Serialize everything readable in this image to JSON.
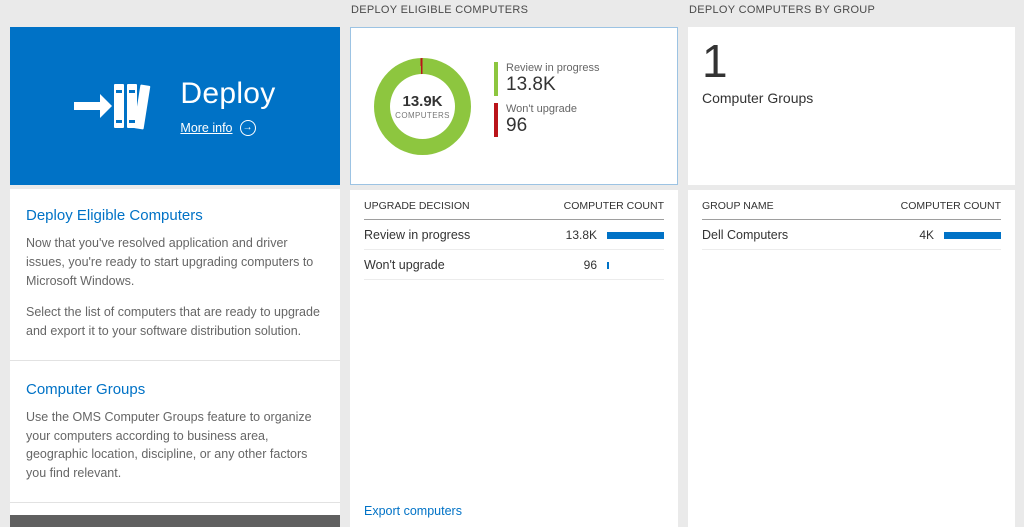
{
  "left": {
    "tile": {
      "title": "Deploy",
      "more_info": "More info"
    },
    "section_deploy": {
      "heading": "Deploy Eligible Computers",
      "p1": "Now that you've resolved application and driver issues, you're ready to start upgrading computers to Microsoft Windows.",
      "p2": "Select the list of computers that are ready to upgrade and export it to your software distribution solution."
    },
    "section_groups": {
      "heading": "Computer Groups",
      "p1": "Use the OMS Computer Groups feature to organize your computers according to business area, geographic location, discipline, or any other factors you find relevant."
    }
  },
  "middle": {
    "header": "DEPLOY ELIGIBLE COMPUTERS",
    "donut_center_value": "13.9K",
    "donut_center_label": "COMPUTERS",
    "legend": [
      {
        "label": "Review in progress",
        "value": "13.8K"
      },
      {
        "label": "Won't upgrade",
        "value": "96"
      }
    ],
    "table": {
      "col1": "UPGRADE DECISION",
      "col2": "COMPUTER COUNT",
      "rows": [
        {
          "label": "Review in progress",
          "value": "13.8K",
          "bar_pct": 100
        },
        {
          "label": "Won't upgrade",
          "value": "96",
          "bar_pct": 3
        }
      ]
    },
    "export_link": "Export computers"
  },
  "right": {
    "header": "DEPLOY COMPUTERS BY GROUP",
    "count": "1",
    "count_label": "Computer Groups",
    "table": {
      "col1": "GROUP NAME",
      "col2": "COMPUTER COUNT",
      "rows": [
        {
          "label": "Dell Computers",
          "value": "4K",
          "bar_pct": 100
        }
      ]
    }
  },
  "colors": {
    "accent_blue": "#0072c6",
    "donut_green": "#8dc63f",
    "alert_red": "#ba141a"
  },
  "chart_data": {
    "type": "pie",
    "donut": true,
    "title": "DEPLOY ELIGIBLE COMPUTERS",
    "labels": [
      "Review in progress",
      "Won't upgrade"
    ],
    "values": [
      13800,
      96
    ],
    "colors": [
      "#8dc63f",
      "#ba141a"
    ],
    "center_value": "13.9K",
    "center_label": "COMPUTERS",
    "legend_position": "right"
  }
}
